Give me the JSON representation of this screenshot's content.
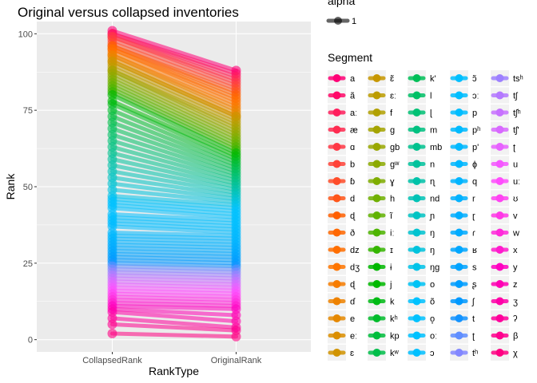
{
  "chart_data": {
    "type": "line",
    "title": "Original versus collapsed inventories",
    "xlabel": "RankType",
    "ylabel": "Rank",
    "categories": [
      "CollapsedRank",
      "OriginalRank"
    ],
    "ylim": [
      -4,
      104
    ],
    "yticks": [
      0,
      25,
      50,
      75,
      100
    ],
    "grid": true,
    "legend": {
      "placement": "right",
      "alpha_title": "alpha",
      "alpha_value": "1",
      "segment_title": "Segment",
      "segments": [
        "a",
        "ã",
        "aː",
        "æ",
        "ɑ",
        "b",
        "ɓ",
        "d",
        "ɖ",
        "ð",
        "dz",
        "dʒ",
        "ɖ",
        "ɗ",
        "e",
        "eː",
        "ɛ",
        "ɛ̃",
        "ɛː",
        "f",
        "g",
        "gb",
        "gʷ",
        "ɣ",
        "h",
        "ĩ",
        "iː",
        "ɪ",
        "ɨ",
        "j",
        "k",
        "kʰ",
        "kp",
        "kʷ",
        "k'",
        "l",
        "ɭ",
        "m",
        "mb",
        "n",
        "ɳ",
        "nd",
        "ɲ",
        "ŋ",
        "ŋ",
        "ŋg",
        "o",
        "õ",
        "o̞",
        "oː",
        "ɔ",
        "ɔ̃",
        "ɔː",
        "p",
        "pʰ",
        "p'",
        "ɸ",
        "q",
        "r",
        "ɽ",
        "ɾ",
        "ʁ",
        "s",
        "ʂ",
        "ʃ",
        "t",
        "ʈ",
        "tʰ",
        "tsʰ",
        "tʃ",
        "tʃʰ",
        "tʃ'",
        "ʈ",
        "u",
        "uː",
        "ʊ",
        "v",
        "w",
        "x",
        "y",
        "z",
        "ʒ",
        "ʔ",
        "β",
        "χ"
      ]
    },
    "series_count": 85,
    "collapsed_rank_values": [
      101,
      100,
      100,
      99,
      99,
      98,
      97,
      96,
      96,
      95,
      95,
      94,
      93,
      93,
      92,
      91,
      91,
      90,
      89,
      88,
      88,
      87,
      86,
      85,
      84,
      83,
      82,
      81,
      80,
      78,
      77,
      75,
      73,
      71,
      69,
      67,
      65,
      63,
      61,
      59,
      57,
      55,
      53,
      51,
      49,
      47,
      46,
      45,
      44,
      43,
      41,
      40,
      39,
      38,
      37,
      35,
      34,
      33,
      32,
      31,
      30,
      29,
      28,
      27,
      26,
      25,
      24,
      23,
      22,
      21,
      20,
      19,
      18,
      17,
      16,
      15,
      14,
      13,
      12,
      11,
      10,
      9,
      7,
      5,
      2
    ],
    "original_rank_values": [
      88,
      87,
      86,
      85,
      84,
      83,
      82,
      81,
      80,
      79,
      78,
      77,
      76,
      75,
      74,
      73,
      73,
      72,
      71,
      70,
      69,
      68,
      67,
      66,
      65,
      64,
      63,
      62,
      61,
      60,
      59,
      58,
      57,
      56,
      55,
      54,
      53,
      52,
      51,
      50,
      49,
      48,
      47,
      46,
      45,
      44,
      43,
      42,
      41,
      40,
      39,
      38,
      37,
      36,
      35,
      34,
      33,
      32,
      31,
      30,
      29,
      28,
      27,
      26,
      25,
      24,
      23,
      22,
      21,
      20,
      19,
      18,
      17,
      16,
      15,
      14,
      13,
      12,
      11,
      10,
      8,
      6,
      4,
      3,
      1
    ]
  }
}
